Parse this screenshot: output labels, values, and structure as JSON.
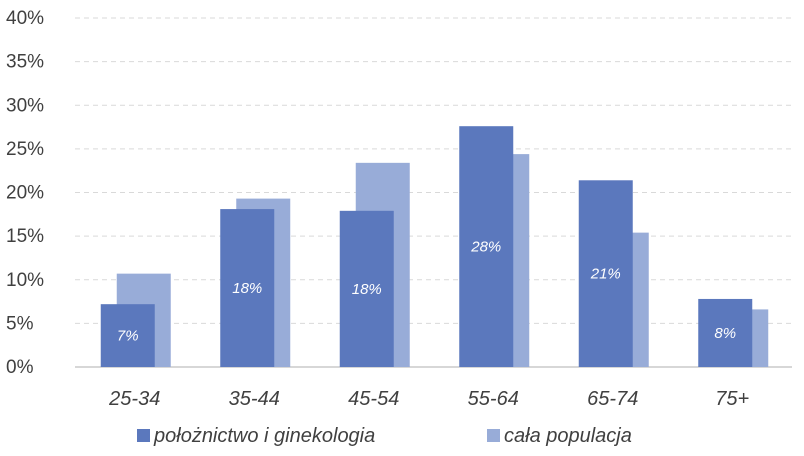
{
  "chart_data": {
    "type": "bar",
    "categories": [
      "25-34",
      "35-44",
      "45-54",
      "55-64",
      "65-74",
      "75+"
    ],
    "series": [
      {
        "name": "położnictwo i ginekologia",
        "values": [
          7.2,
          18.1,
          17.9,
          27.6,
          21.4,
          7.8
        ],
        "labels": [
          "7%",
          "18%",
          "18%",
          "28%",
          "21%",
          "8%"
        ],
        "color": "#5b78bd"
      },
      {
        "name": "cała populacja",
        "values": [
          10.7,
          19.3,
          23.4,
          24.4,
          15.4,
          6.6
        ],
        "color": "#98acd8"
      }
    ],
    "ylim": [
      0,
      40
    ],
    "yticks": [
      "0%",
      "5%",
      "10%",
      "15%",
      "20%",
      "25%",
      "30%",
      "35%",
      "40%"
    ],
    "grid": true,
    "legend_position": "bottom",
    "colors": {
      "grid": "#d9d9d9",
      "axis": "#bfbfbf",
      "text": "#404040"
    }
  }
}
